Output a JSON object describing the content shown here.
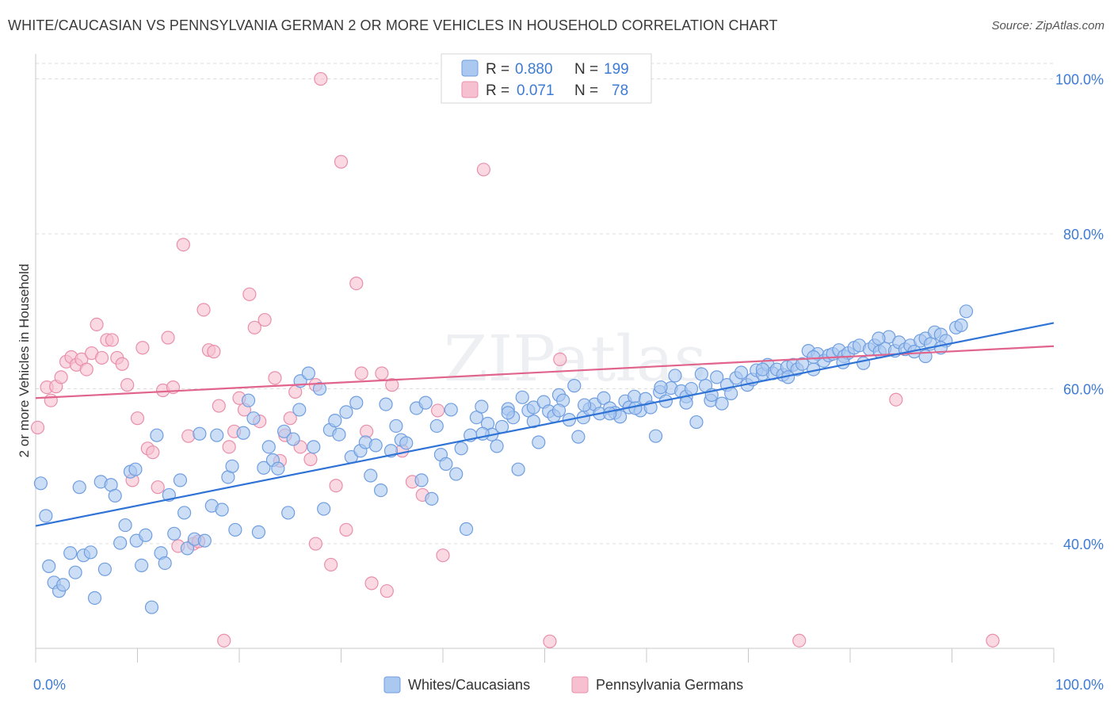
{
  "title": "WHITE/CAUCASIAN VS PENNSYLVANIA GERMAN 2 OR MORE VEHICLES IN HOUSEHOLD CORRELATION CHART",
  "source": "Source: ZipAtlas.com",
  "watermark": "ZIPatlas",
  "colors": {
    "blue_fill": "#aac8f0",
    "blue_stroke": "#6f9ee0",
    "blue_line": "#2f73d6",
    "pink_fill": "#f7c0d0",
    "pink_stroke": "#e98fab",
    "pink_line": "#e0648c",
    "tick_text": "#3d7bd4",
    "grid": "#dcdcdc"
  },
  "stats": {
    "blue": {
      "r_label": "R =",
      "r_value": "0.880",
      "n_label": "N =",
      "n_value": "199"
    },
    "pink": {
      "r_label": "R =",
      "r_value": "0.071",
      "n_label": "N =",
      "n_value": "78"
    }
  },
  "legend": {
    "blue": "Whites/Caucasians",
    "pink": "Pennsylvania Germans"
  },
  "chart_data": {
    "type": "scatter",
    "xlabel": "",
    "ylabel": "2 or more Vehicles in Household",
    "xlim": [
      0,
      100
    ],
    "ylim": [
      26.5,
      102
    ],
    "x_tick_labels": [
      "0.0%",
      "100.0%"
    ],
    "y_ticks": [
      40,
      60,
      80,
      100
    ],
    "y_tick_labels": [
      "40.0%",
      "60.0%",
      "80.0%",
      "100.0%"
    ],
    "grid": "horizontal dashed",
    "legend_position": "bottom-center",
    "series": [
      {
        "name": "Whites/Caucasians",
        "color": "#aac8f0",
        "trend": {
          "x": [
            0,
            100
          ],
          "y": [
            42.3,
            68.5
          ]
        },
        "points": [
          [
            0.5,
            47.8
          ],
          [
            1.0,
            43.6
          ],
          [
            1.3,
            37.1
          ],
          [
            1.8,
            35.0
          ],
          [
            2.3,
            33.9
          ],
          [
            2.7,
            34.7
          ],
          [
            3.4,
            38.8
          ],
          [
            3.9,
            36.3
          ],
          [
            4.3,
            47.3
          ],
          [
            4.7,
            38.5
          ],
          [
            5.4,
            38.9
          ],
          [
            5.8,
            33.0
          ],
          [
            6.4,
            48.0
          ],
          [
            6.8,
            36.7
          ],
          [
            7.4,
            47.6
          ],
          [
            7.8,
            46.2
          ],
          [
            8.3,
            40.1
          ],
          [
            8.8,
            42.4
          ],
          [
            9.3,
            49.3
          ],
          [
            9.8,
            49.6
          ],
          [
            9.9,
            40.4
          ],
          [
            10.4,
            37.2
          ],
          [
            10.8,
            41.1
          ],
          [
            11.4,
            31.8
          ],
          [
            11.9,
            54.0
          ],
          [
            12.3,
            38.8
          ],
          [
            12.7,
            37.5
          ],
          [
            13.1,
            46.3
          ],
          [
            13.6,
            41.3
          ],
          [
            14.2,
            48.2
          ],
          [
            14.6,
            44.0
          ],
          [
            14.9,
            39.4
          ],
          [
            15.6,
            40.6
          ],
          [
            16.1,
            54.2
          ],
          [
            16.6,
            40.4
          ],
          [
            17.3,
            44.9
          ],
          [
            17.8,
            54.0
          ],
          [
            18.3,
            44.4
          ],
          [
            18.9,
            48.6
          ],
          [
            19.3,
            50.0
          ],
          [
            19.6,
            41.8
          ],
          [
            20.4,
            54.3
          ],
          [
            20.9,
            58.5
          ],
          [
            21.4,
            56.2
          ],
          [
            21.9,
            41.5
          ],
          [
            22.4,
            49.8
          ],
          [
            22.9,
            52.5
          ],
          [
            23.3,
            50.8
          ],
          [
            23.8,
            49.7
          ],
          [
            24.4,
            54.5
          ],
          [
            24.8,
            44.0
          ],
          [
            25.3,
            53.5
          ],
          [
            25.9,
            57.3
          ],
          [
            26.0,
            61.0
          ],
          [
            26.8,
            62.0
          ],
          [
            27.3,
            52.5
          ],
          [
            27.9,
            60.0
          ],
          [
            28.3,
            44.5
          ],
          [
            28.9,
            54.7
          ],
          [
            29.4,
            55.9
          ],
          [
            29.8,
            54.1
          ],
          [
            30.5,
            57.0
          ],
          [
            31.0,
            51.2
          ],
          [
            31.5,
            58.2
          ],
          [
            31.9,
            52.0
          ],
          [
            32.4,
            53.1
          ],
          [
            32.9,
            48.8
          ],
          [
            33.4,
            52.7
          ],
          [
            33.9,
            46.9
          ],
          [
            34.4,
            58.0
          ],
          [
            34.9,
            52.0
          ],
          [
            35.4,
            55.2
          ],
          [
            35.9,
            53.4
          ],
          [
            36.4,
            53.0
          ],
          [
            37.4,
            57.5
          ],
          [
            37.9,
            48.2
          ],
          [
            38.3,
            58.2
          ],
          [
            38.9,
            45.8
          ],
          [
            39.4,
            55.2
          ],
          [
            39.8,
            51.5
          ],
          [
            40.3,
            50.3
          ],
          [
            40.8,
            57.3
          ],
          [
            41.3,
            49.0
          ],
          [
            41.8,
            52.3
          ],
          [
            42.3,
            41.9
          ],
          [
            42.7,
            54.0
          ],
          [
            43.3,
            56.3
          ],
          [
            43.8,
            57.7
          ],
          [
            44.4,
            55.5
          ],
          [
            44.8,
            54.1
          ],
          [
            45.3,
            52.6
          ],
          [
            45.8,
            55.1
          ],
          [
            46.4,
            57.4
          ],
          [
            46.9,
            56.3
          ],
          [
            47.4,
            49.6
          ],
          [
            47.8,
            58.9
          ],
          [
            48.4,
            57.2
          ],
          [
            48.9,
            57.6
          ],
          [
            49.4,
            53.1
          ],
          [
            49.9,
            58.3
          ],
          [
            50.4,
            57.1
          ],
          [
            50.9,
            56.5
          ],
          [
            51.4,
            59.2
          ],
          [
            51.8,
            58.5
          ],
          [
            52.4,
            56.0
          ],
          [
            52.9,
            60.4
          ],
          [
            53.3,
            53.8
          ],
          [
            53.8,
            56.3
          ],
          [
            54.4,
            57.4
          ],
          [
            54.9,
            58.0
          ],
          [
            55.4,
            56.8
          ],
          [
            55.8,
            58.8
          ],
          [
            56.4,
            57.5
          ],
          [
            56.9,
            56.9
          ],
          [
            57.4,
            56.4
          ],
          [
            57.9,
            58.4
          ],
          [
            58.3,
            57.6
          ],
          [
            58.8,
            59.0
          ],
          [
            59.4,
            57.2
          ],
          [
            59.9,
            58.7
          ],
          [
            60.4,
            57.6
          ],
          [
            60.9,
            53.9
          ],
          [
            61.3,
            59.6
          ],
          [
            61.9,
            58.4
          ],
          [
            62.4,
            60.1
          ],
          [
            62.8,
            61.7
          ],
          [
            63.4,
            59.7
          ],
          [
            63.9,
            59.0
          ],
          [
            64.4,
            60.0
          ],
          [
            64.9,
            55.7
          ],
          [
            65.4,
            61.9
          ],
          [
            65.8,
            60.4
          ],
          [
            66.3,
            58.5
          ],
          [
            66.9,
            61.5
          ],
          [
            67.4,
            58.1
          ],
          [
            67.9,
            60.5
          ],
          [
            68.3,
            59.4
          ],
          [
            68.8,
            61.4
          ],
          [
            69.3,
            62.1
          ],
          [
            69.9,
            60.5
          ],
          [
            70.4,
            61.2
          ],
          [
            70.8,
            62.4
          ],
          [
            71.4,
            61.9
          ],
          [
            71.9,
            63.1
          ],
          [
            72.4,
            62.0
          ],
          [
            72.8,
            62.5
          ],
          [
            73.4,
            61.8
          ],
          [
            73.8,
            62.8
          ],
          [
            74.4,
            63.1
          ],
          [
            74.8,
            62.5
          ],
          [
            75.3,
            63.2
          ],
          [
            75.9,
            64.9
          ],
          [
            76.4,
            62.5
          ],
          [
            76.8,
            64.5
          ],
          [
            77.4,
            63.6
          ],
          [
            77.9,
            64.3
          ],
          [
            78.3,
            64.5
          ],
          [
            78.9,
            65.0
          ],
          [
            79.4,
            64.2
          ],
          [
            79.8,
            64.6
          ],
          [
            80.4,
            65.3
          ],
          [
            80.9,
            65.6
          ],
          [
            81.3,
            63.3
          ],
          [
            81.9,
            65.1
          ],
          [
            82.4,
            65.6
          ],
          [
            82.9,
            64.8
          ],
          [
            83.4,
            65.2
          ],
          [
            83.8,
            66.7
          ],
          [
            84.4,
            64.9
          ],
          [
            84.8,
            66.0
          ],
          [
            85.4,
            65.1
          ],
          [
            85.9,
            65.6
          ],
          [
            86.3,
            64.8
          ],
          [
            86.9,
            66.2
          ],
          [
            87.4,
            66.5
          ],
          [
            87.9,
            65.8
          ],
          [
            88.3,
            67.3
          ],
          [
            88.9,
            67.0
          ],
          [
            89.4,
            66.2
          ],
          [
            90.4,
            67.9
          ],
          [
            90.9,
            68.2
          ],
          [
            91.4,
            70.0
          ],
          [
            88.9,
            65.3
          ],
          [
            87.4,
            64.2
          ],
          [
            82.8,
            66.5
          ],
          [
            79.3,
            63.4
          ],
          [
            76.4,
            64.1
          ],
          [
            73.9,
            61.5
          ],
          [
            71.4,
            62.5
          ],
          [
            66.4,
            59.2
          ],
          [
            63.9,
            58.2
          ],
          [
            61.4,
            60.2
          ],
          [
            58.9,
            57.5
          ],
          [
            56.4,
            56.8
          ],
          [
            53.9,
            57.9
          ],
          [
            51.4,
            57.2
          ],
          [
            48.9,
            55.8
          ],
          [
            46.4,
            56.9
          ],
          [
            43.9,
            54.2
          ]
        ]
      },
      {
        "name": "Pennsylvania Germans",
        "color": "#f7c0d0",
        "trend": {
          "x": [
            0,
            100
          ],
          "y": [
            58.8,
            65.5
          ]
        },
        "points": [
          [
            0.2,
            55.0
          ],
          [
            1.1,
            60.2
          ],
          [
            1.5,
            58.5
          ],
          [
            2.0,
            60.3
          ],
          [
            2.5,
            61.5
          ],
          [
            3.0,
            63.5
          ],
          [
            3.5,
            64.1
          ],
          [
            4.0,
            63.1
          ],
          [
            4.5,
            63.8
          ],
          [
            5.0,
            62.5
          ],
          [
            5.5,
            64.6
          ],
          [
            6.0,
            68.3
          ],
          [
            6.5,
            64.0
          ],
          [
            7.0,
            66.3
          ],
          [
            7.5,
            66.3
          ],
          [
            8.0,
            64.0
          ],
          [
            8.5,
            63.2
          ],
          [
            9.0,
            60.5
          ],
          [
            9.5,
            48.2
          ],
          [
            10.0,
            56.2
          ],
          [
            10.5,
            65.3
          ],
          [
            11.0,
            52.3
          ],
          [
            11.5,
            51.8
          ],
          [
            12.0,
            47.3
          ],
          [
            12.5,
            59.8
          ],
          [
            13.0,
            66.6
          ],
          [
            13.5,
            60.2
          ],
          [
            14.0,
            39.7
          ],
          [
            14.5,
            78.6
          ],
          [
            15.0,
            53.9
          ],
          [
            15.5,
            40.0
          ],
          [
            16.0,
            40.3
          ],
          [
            16.5,
            70.2
          ],
          [
            17.0,
            65.0
          ],
          [
            17.5,
            64.8
          ],
          [
            18.0,
            57.8
          ],
          [
            18.5,
            27.5
          ],
          [
            19.0,
            52.5
          ],
          [
            19.5,
            54.5
          ],
          [
            20.0,
            58.8
          ],
          [
            20.5,
            57.3
          ],
          [
            21.0,
            72.2
          ],
          [
            21.5,
            67.9
          ],
          [
            22.0,
            55.8
          ],
          [
            22.5,
            68.9
          ],
          [
            23.5,
            61.4
          ],
          [
            24.0,
            50.7
          ],
          [
            24.5,
            54.0
          ],
          [
            25.0,
            56.2
          ],
          [
            25.5,
            59.6
          ],
          [
            26.0,
            52.5
          ],
          [
            27.0,
            50.9
          ],
          [
            27.5,
            60.5
          ],
          [
            28.0,
            100.0
          ],
          [
            29.0,
            37.3
          ],
          [
            29.5,
            47.5
          ],
          [
            30.0,
            89.3
          ],
          [
            30.5,
            41.8
          ],
          [
            31.5,
            73.6
          ],
          [
            32.5,
            54.5
          ],
          [
            32.0,
            62.0
          ],
          [
            33.0,
            34.9
          ],
          [
            34.0,
            62.0
          ],
          [
            34.5,
            33.9
          ],
          [
            35.0,
            60.5
          ],
          [
            36.0,
            52.0
          ],
          [
            37.0,
            48.0
          ],
          [
            38.0,
            46.3
          ],
          [
            39.5,
            57.2
          ],
          [
            40.0,
            38.5
          ],
          [
            44.0,
            88.3
          ],
          [
            50.5,
            27.4
          ],
          [
            51.5,
            63.8
          ],
          [
            58.5,
            100.0
          ],
          [
            75.0,
            27.5
          ],
          [
            84.5,
            58.6
          ],
          [
            94.0,
            27.5
          ],
          [
            27.5,
            40.0
          ]
        ]
      }
    ]
  }
}
